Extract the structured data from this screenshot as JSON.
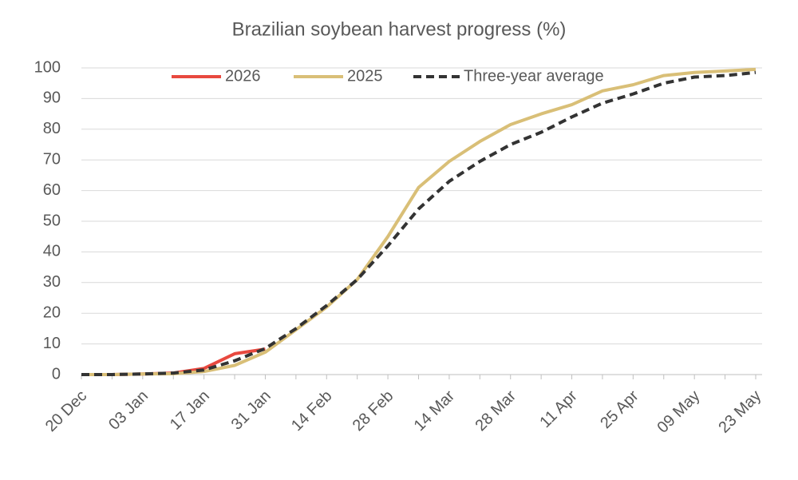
{
  "chart_data": {
    "type": "line",
    "title": "Brazilian soybean harvest progress (%)",
    "categories": [
      "20 Dec",
      null,
      "03 Jan",
      null,
      "17 Jan",
      null,
      "31 Jan",
      null,
      "14 Feb",
      null,
      "28 Feb",
      null,
      "14 Mar",
      null,
      "28 Mar",
      null,
      "11 Apr",
      null,
      "25 Apr",
      null,
      "09 May",
      null,
      "23 May"
    ],
    "series": [
      {
        "name": "2026",
        "color": "#e8493f",
        "dash": false,
        "values": [
          0,
          0,
          0.2,
          0.5,
          2,
          6.8,
          8.3,
          null,
          null,
          null,
          null,
          null,
          null,
          null,
          null,
          null,
          null,
          null,
          null,
          null,
          null,
          null,
          null
        ]
      },
      {
        "name": "2025",
        "color": "#d9bf77",
        "dash": false,
        "values": [
          0,
          0,
          0.2,
          0.3,
          1,
          3,
          7.3,
          14.6,
          22,
          31,
          45,
          61,
          69.5,
          76,
          81.5,
          85,
          88,
          92.5,
          94.5,
          97.5,
          98.5,
          99,
          99.5
        ]
      },
      {
        "name": "Three-year average",
        "color": "#333333",
        "dash": true,
        "values": [
          0,
          0,
          0.2,
          0.5,
          1.5,
          4.5,
          8.5,
          15,
          22.5,
          31,
          42,
          54,
          63,
          69.5,
          75,
          79,
          84,
          88.5,
          91.5,
          95,
          97,
          97.5,
          98.5
        ]
      }
    ],
    "ylim": [
      0,
      100
    ],
    "yticks": [
      0,
      10,
      20,
      30,
      40,
      50,
      60,
      70,
      80,
      90,
      100
    ],
    "grid": true
  }
}
